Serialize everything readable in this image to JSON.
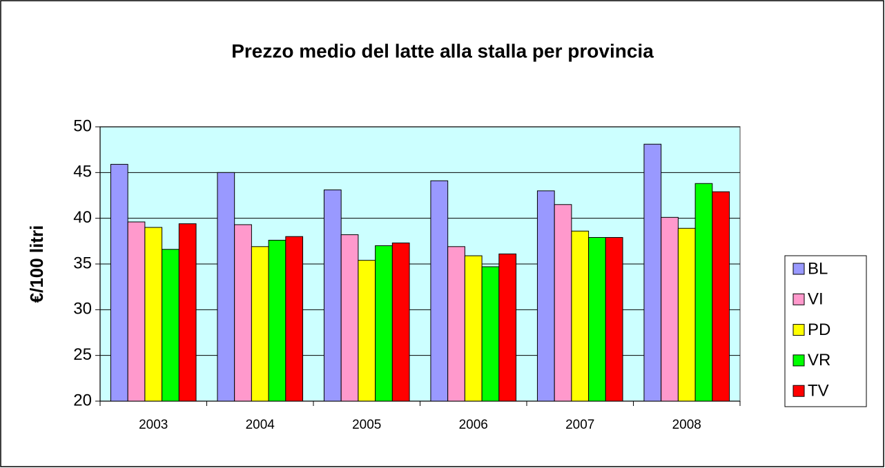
{
  "chart_data": {
    "type": "bar",
    "title": "Prezzo medio del latte alla stalla per provincia",
    "y_label": "€/100 litri",
    "categories": [
      "2003",
      "2004",
      "2005",
      "2006",
      "2007",
      "2008"
    ],
    "series": [
      {
        "name": "BL",
        "color": "#9999ff",
        "values": [
          45.9,
          45.0,
          43.1,
          44.1,
          43.0,
          48.1
        ]
      },
      {
        "name": "VI",
        "color": "#ff99cc",
        "values": [
          39.6,
          39.3,
          38.2,
          36.9,
          41.5,
          40.1
        ]
      },
      {
        "name": "PD",
        "color": "#ffff00",
        "values": [
          39.0,
          36.9,
          35.4,
          35.9,
          38.6,
          38.9
        ]
      },
      {
        "name": "VR",
        "color": "#00ff00",
        "values": [
          36.6,
          37.6,
          37.0,
          34.7,
          37.9,
          43.8
        ]
      },
      {
        "name": "TV",
        "color": "#ff0000",
        "values": [
          39.4,
          38.0,
          37.3,
          36.1,
          37.9,
          42.9
        ]
      }
    ],
    "ylim": [
      20,
      50
    ],
    "yticks": [
      20,
      25,
      30,
      35,
      40,
      45,
      50
    ],
    "grid": true,
    "legend": "right",
    "plot_background": "#ccffff"
  }
}
